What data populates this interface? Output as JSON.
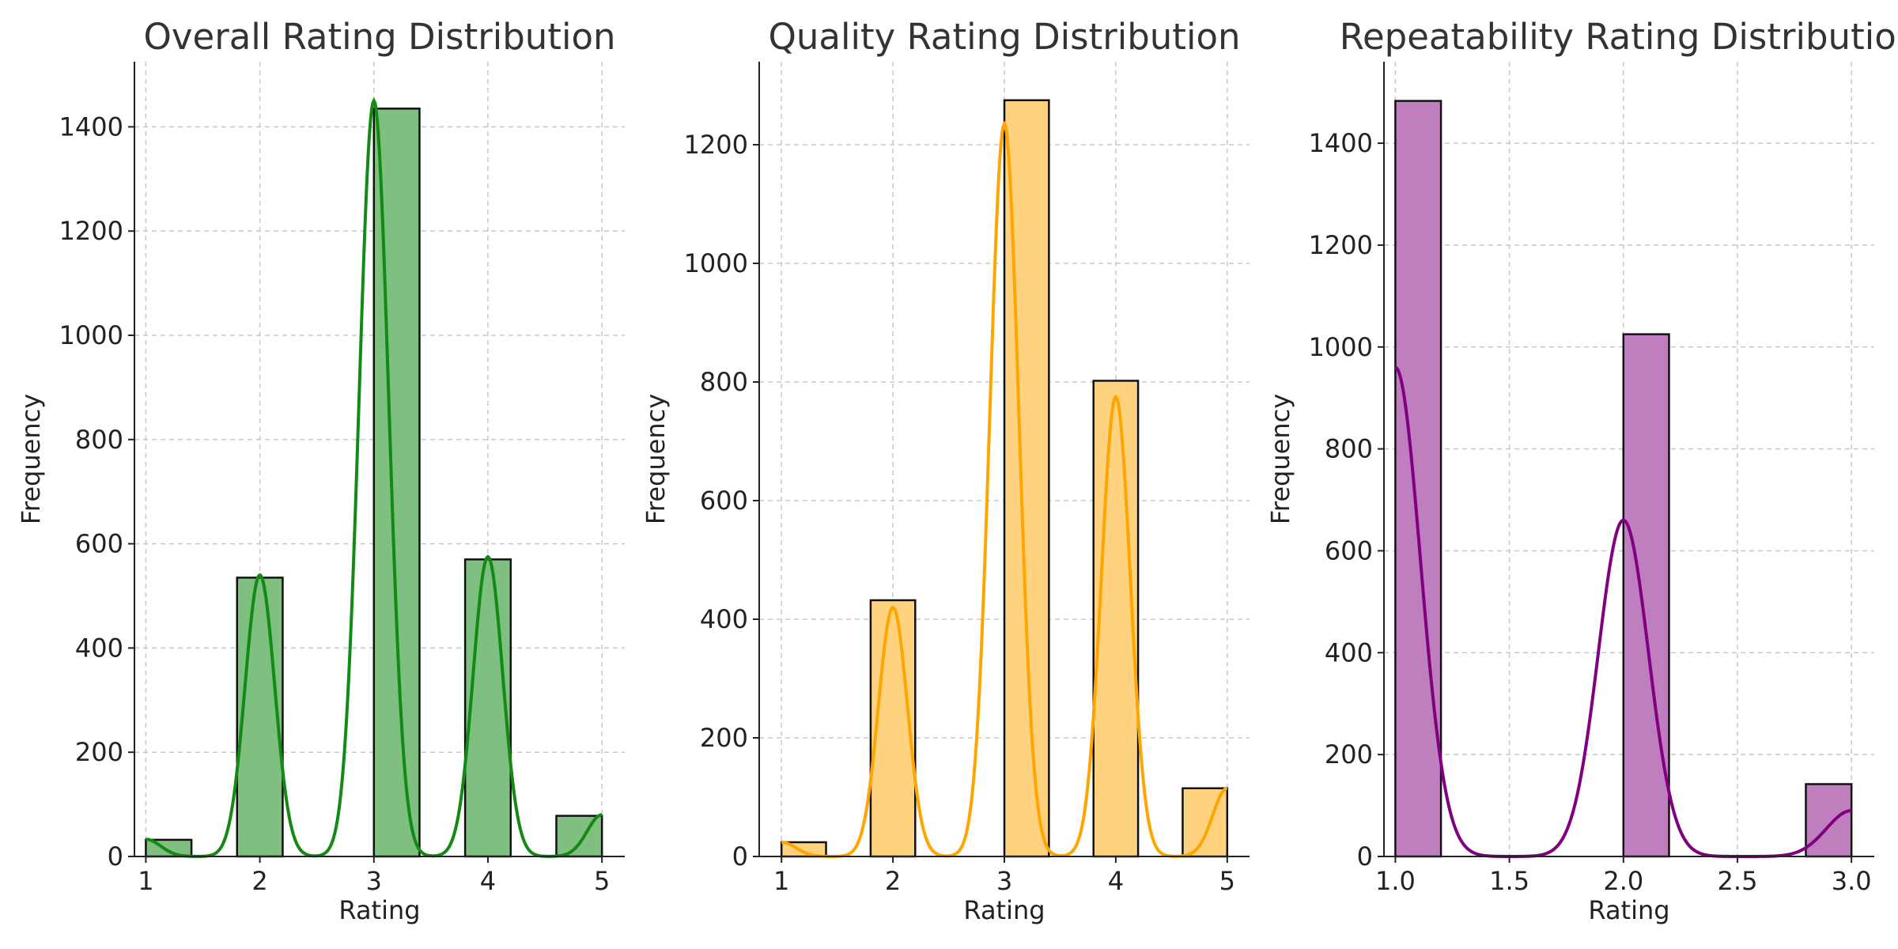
{
  "chart_data": [
    {
      "type": "bar",
      "title": "Overall Rating Distribution",
      "xlabel": "Rating",
      "ylabel": "Frequency",
      "color": "#7fbf7f",
      "kde_color": "#138a13",
      "xlim": [
        0.9,
        5.2
      ],
      "ylim": [
        0,
        1525
      ],
      "xticks": [
        "1",
        "2",
        "3",
        "4",
        "5"
      ],
      "xtick_values": [
        1,
        2,
        3,
        4,
        5
      ],
      "yticks": [
        "0",
        "200",
        "400",
        "600",
        "800",
        "1000",
        "1200",
        "1400"
      ],
      "ytick_values": [
        0,
        200,
        400,
        600,
        800,
        1000,
        1200,
        1400
      ],
      "grid": true,
      "bin_width": 0.4,
      "bins": [
        {
          "start": 1.0,
          "value": 32
        },
        {
          "start": 1.8,
          "value": 535
        },
        {
          "start": 3.0,
          "value": 1435
        },
        {
          "start": 3.8,
          "value": 570
        },
        {
          "start": 4.6,
          "value": 78
        }
      ],
      "kde": {
        "bandwidth": 0.13,
        "peaks": [
          {
            "x": 1.0,
            "y": 33
          },
          {
            "x": 2.0,
            "y": 540
          },
          {
            "x": 3.0,
            "y": 1450
          },
          {
            "x": 4.0,
            "y": 575
          },
          {
            "x": 5.0,
            "y": 80
          }
        ]
      }
    },
    {
      "type": "bar",
      "title": "Quality Rating Distribution",
      "xlabel": "Rating",
      "ylabel": "Frequency",
      "color": "#ffd280",
      "kde_color": "#ffa500",
      "xlim": [
        0.8,
        5.2
      ],
      "ylim": [
        0,
        1340
      ],
      "xticks": [
        "1",
        "2",
        "3",
        "4",
        "5"
      ],
      "xtick_values": [
        1,
        2,
        3,
        4,
        5
      ],
      "yticks": [
        "0",
        "200",
        "400",
        "600",
        "800",
        "1000",
        "1200"
      ],
      "ytick_values": [
        0,
        200,
        400,
        600,
        800,
        1000,
        1200
      ],
      "grid": true,
      "bin_width": 0.4,
      "bins": [
        {
          "start": 1.0,
          "value": 24
        },
        {
          "start": 1.8,
          "value": 432
        },
        {
          "start": 3.0,
          "value": 1275
        },
        {
          "start": 3.8,
          "value": 802
        },
        {
          "start": 4.6,
          "value": 115
        }
      ],
      "kde": {
        "bandwidth": 0.13,
        "peaks": [
          {
            "x": 1.0,
            "y": 24
          },
          {
            "x": 2.0,
            "y": 420
          },
          {
            "x": 3.0,
            "y": 1235
          },
          {
            "x": 4.0,
            "y": 775
          },
          {
            "x": 5.0,
            "y": 115
          }
        ]
      }
    },
    {
      "type": "bar",
      "title": "Repeatability Rating Distribution",
      "xlabel": "Rating",
      "ylabel": "Frequency",
      "color": "#bf7fbf",
      "kde_color": "#800080",
      "xlim": [
        0.95,
        3.1
      ],
      "ylim": [
        0,
        1560
      ],
      "xticks": [
        "1.0",
        "1.5",
        "2.0",
        "2.5",
        "3.0"
      ],
      "xtick_values": [
        1.0,
        1.5,
        2.0,
        2.5,
        3.0
      ],
      "yticks": [
        "0",
        "200",
        "400",
        "600",
        "800",
        "1000",
        "1200",
        "1400"
      ],
      "ytick_values": [
        0,
        200,
        400,
        600,
        800,
        1000,
        1200,
        1400
      ],
      "grid": true,
      "bin_width": 0.2,
      "bins": [
        {
          "start": 1.0,
          "value": 1483
        },
        {
          "start": 2.0,
          "value": 1025
        },
        {
          "start": 2.8,
          "value": 142
        }
      ],
      "kde": {
        "bandwidth": 0.11,
        "peaks": [
          {
            "x": 1.0,
            "y": 960
          },
          {
            "x": 2.0,
            "y": 660
          },
          {
            "x": 3.0,
            "y": 90
          }
        ]
      }
    }
  ]
}
